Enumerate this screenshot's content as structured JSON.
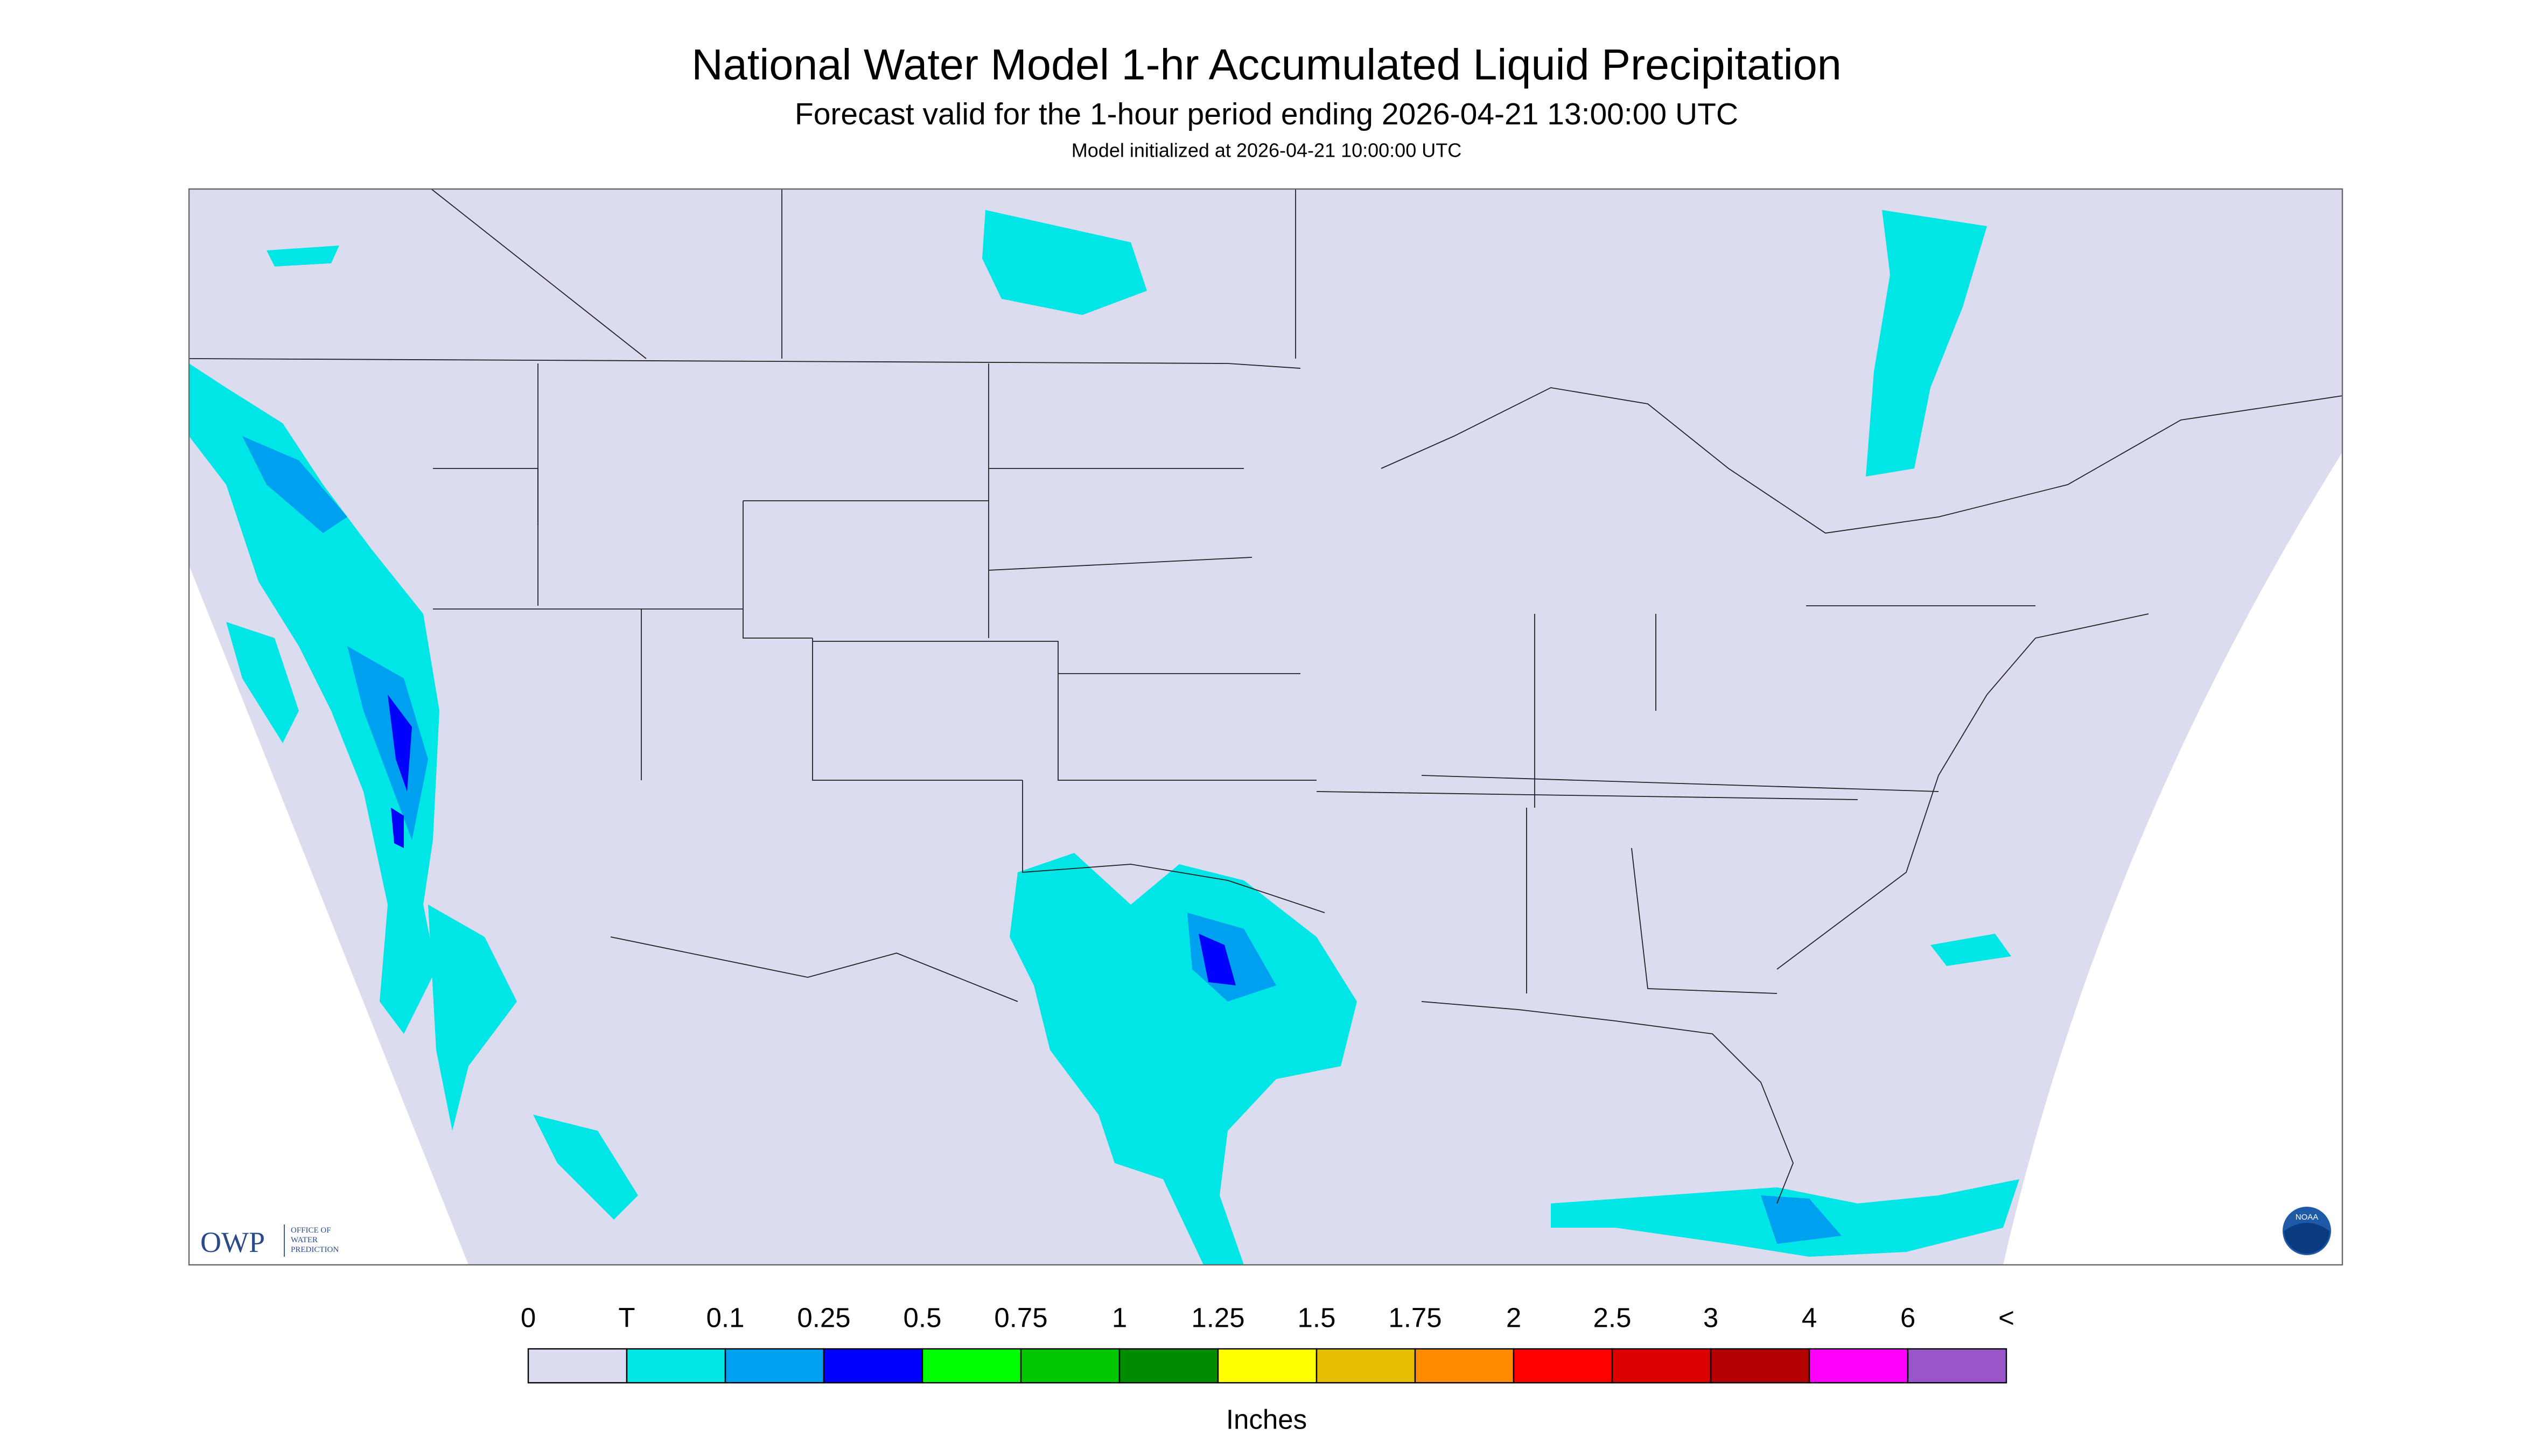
{
  "header": {
    "title": "National Water Model 1-hr Accumulated Liquid Precipitation",
    "subtitle": "Forecast valid for the 1-hour period ending 2026-04-21 13:00:00 UTC",
    "init": "Model initialized at 2026-04-21 10:00:00 UTC"
  },
  "logos": {
    "owp": "OWP",
    "owp_name": [
      "OFFICE OF",
      "WATER",
      "PREDICTION"
    ],
    "noaa": "NOAA"
  },
  "legend": {
    "labels": [
      "0",
      "T",
      "0.1",
      "0.25",
      "0.5",
      "0.75",
      "1",
      "1.25",
      "1.5",
      "1.75",
      "2",
      "2.5",
      "3",
      "4",
      "6",
      "<"
    ],
    "colors": [
      "#dcdcf0",
      "#00e6e6",
      "#00a0f0",
      "#0000ff",
      "#00ff00",
      "#00c800",
      "#008c00",
      "#ffff00",
      "#e6c000",
      "#ff8c00",
      "#ff0000",
      "#dc0000",
      "#b40000",
      "#ff00ff",
      "#9955c9"
    ],
    "unit": "Inches"
  }
}
